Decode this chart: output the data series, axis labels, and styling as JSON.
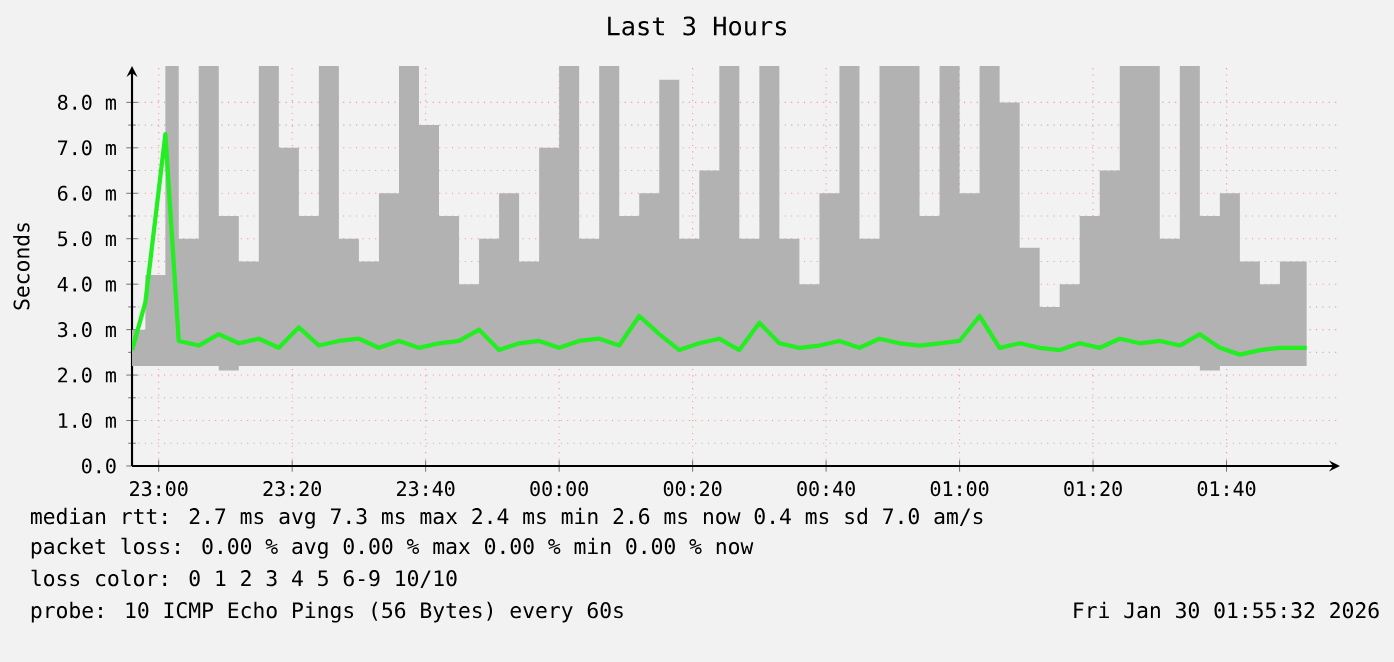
{
  "chart_data": {
    "type": "line",
    "title": "Last 3 Hours",
    "ylabel": "Seconds",
    "x": [
      "2026-01-29T22:56",
      "2026-01-29T22:58",
      "2026-01-29T23:01",
      "2026-01-29T23:03",
      "2026-01-29T23:06",
      "2026-01-29T23:09",
      "2026-01-29T23:12",
      "2026-01-29T23:15",
      "2026-01-29T23:18",
      "2026-01-29T23:21",
      "2026-01-29T23:24",
      "2026-01-29T23:27",
      "2026-01-29T23:30",
      "2026-01-29T23:33",
      "2026-01-29T23:36",
      "2026-01-29T23:39",
      "2026-01-29T23:42",
      "2026-01-29T23:45",
      "2026-01-29T23:48",
      "2026-01-29T23:51",
      "2026-01-29T23:54",
      "2026-01-29T23:57",
      "2026-01-30T00:00",
      "2026-01-30T00:03",
      "2026-01-30T00:06",
      "2026-01-30T00:09",
      "2026-01-30T00:12",
      "2026-01-30T00:15",
      "2026-01-30T00:18",
      "2026-01-30T00:21",
      "2026-01-30T00:24",
      "2026-01-30T00:27",
      "2026-01-30T00:30",
      "2026-01-30T00:33",
      "2026-01-30T00:36",
      "2026-01-30T00:39",
      "2026-01-30T00:42",
      "2026-01-30T00:45",
      "2026-01-30T00:48",
      "2026-01-30T00:51",
      "2026-01-30T00:54",
      "2026-01-30T00:57",
      "2026-01-30T01:00",
      "2026-01-30T01:03",
      "2026-01-30T01:06",
      "2026-01-30T01:09",
      "2026-01-30T01:12",
      "2026-01-30T01:15",
      "2026-01-30T01:18",
      "2026-01-30T01:21",
      "2026-01-30T01:24",
      "2026-01-30T01:27",
      "2026-01-30T01:30",
      "2026-01-30T01:33",
      "2026-01-30T01:36",
      "2026-01-30T01:39",
      "2026-01-30T01:42",
      "2026-01-30T01:45",
      "2026-01-30T01:48",
      "2026-01-30T01:52"
    ],
    "series": [
      {
        "color": "#22ee22",
        "values": [
          2.55,
          3.6,
          7.3,
          2.75,
          2.65,
          2.9,
          2.7,
          2.8,
          2.6,
          3.05,
          2.65,
          2.75,
          2.8,
          2.6,
          2.75,
          2.6,
          2.7,
          2.75,
          3.0,
          2.55,
          2.7,
          2.75,
          2.6,
          2.75,
          2.8,
          2.65,
          3.3,
          2.9,
          2.55,
          2.7,
          2.8,
          2.55,
          3.15,
          2.7,
          2.6,
          2.65,
          2.75,
          2.6,
          2.8,
          2.7,
          2.65,
          2.7,
          2.75,
          3.3,
          2.6,
          2.7,
          2.6,
          2.55,
          2.7,
          2.6,
          2.8,
          2.7,
          2.75,
          2.65,
          2.9,
          2.6,
          2.45,
          2.55,
          2.6,
          2.6
        ],
        "lower": [
          2.2,
          2.2,
          2.2,
          2.2,
          2.2,
          2.2,
          2.1,
          2.2,
          2.2,
          2.2,
          2.2,
          2.2,
          2.2,
          2.2,
          2.2,
          2.2,
          2.2,
          2.2,
          2.2,
          2.2,
          2.2,
          2.2,
          2.2,
          2.2,
          2.2,
          2.2,
          2.2,
          2.2,
          2.2,
          2.2,
          2.2,
          2.2,
          2.2,
          2.2,
          2.2,
          2.2,
          2.2,
          2.2,
          2.2,
          2.2,
          2.2,
          2.2,
          2.2,
          2.2,
          2.2,
          2.2,
          2.2,
          2.2,
          2.2,
          2.2,
          2.2,
          2.2,
          2.2,
          2.2,
          2.2,
          2.1,
          2.2,
          2.2,
          2.2,
          2.2
        ],
        "upper": [
          3.0,
          4.2,
          8.8,
          5.0,
          8.8,
          5.5,
          4.5,
          8.8,
          7.0,
          5.5,
          8.8,
          5.0,
          4.5,
          6.0,
          8.8,
          7.5,
          5.5,
          4.0,
          5.0,
          6.0,
          4.5,
          7.0,
          8.8,
          5.0,
          8.8,
          5.5,
          6.0,
          8.5,
          5.0,
          6.5,
          8.8,
          5.0,
          8.8,
          5.0,
          4.0,
          6.0,
          8.8,
          5.0,
          8.8,
          8.8,
          5.5,
          8.8,
          6.0,
          8.8,
          8.0,
          4.8,
          3.5,
          4.0,
          5.5,
          6.5,
          8.8,
          8.8,
          5.0,
          8.8,
          5.5,
          6.0,
          4.5,
          4.0,
          4.5,
          5.2
        ]
      }
    ],
    "xlim": [
      "2026-01-29T22:56",
      "2026-01-30T01:57"
    ],
    "xticks": [
      {
        "value": "2026-01-29T23:00",
        "label": "23:00"
      },
      {
        "value": "2026-01-29T23:20",
        "label": "23:20"
      },
      {
        "value": "2026-01-29T23:40",
        "label": "23:40"
      },
      {
        "value": "2026-01-30T00:00",
        "label": "00:00"
      },
      {
        "value": "2026-01-30T00:20",
        "label": "00:20"
      },
      {
        "value": "2026-01-30T00:40",
        "label": "00:40"
      },
      {
        "value": "2026-01-30T01:00",
        "label": "01:00"
      },
      {
        "value": "2026-01-30T01:20",
        "label": "01:20"
      },
      {
        "value": "2026-01-30T01:40",
        "label": "01:40"
      }
    ],
    "ylim": [
      0,
      8.8
    ],
    "yticks": [
      {
        "value": 0,
        "label": "0.0"
      },
      {
        "value": 1,
        "label": "1.0 m"
      },
      {
        "value": 2,
        "label": "2.0 m"
      },
      {
        "value": 3,
        "label": "3.0 m"
      },
      {
        "value": 4,
        "label": "4.0 m"
      },
      {
        "value": 5,
        "label": "5.0 m"
      },
      {
        "value": 6,
        "label": "6.0 m"
      },
      {
        "value": 7,
        "label": "7.0 m"
      },
      {
        "value": 8,
        "label": "8.0 m"
      }
    ],
    "grid": true,
    "marker": "none",
    "line_style": "solid",
    "annotations": [
      "median rtt: 2.7 ms avg 7.3 ms max 2.4 ms min 2.6 ms now 0.4 ms sd 7.0 am/s",
      "packet loss: 0.00 % avg 0.00 % max 0.00 % min 0.00 % now",
      "loss color: 0 1 2 3 4 5 6-9 10/10",
      "probe: 10 ICMP Echo Pings (56 Bytes) every 60s",
      "Fri Jan 30 01:55:32 2026"
    ]
  }
}
